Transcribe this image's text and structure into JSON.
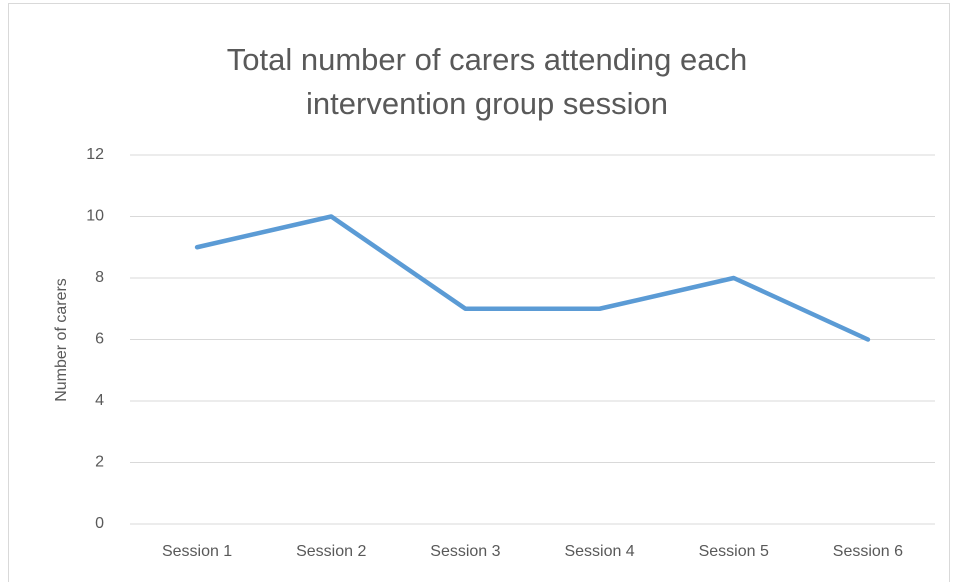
{
  "chart_data": {
    "type": "line",
    "title": "Total number of carers attending each intervention group session",
    "y_label": "Number of carers",
    "categories": [
      "Session 1",
      "Session 2",
      "Session 3",
      "Session 4",
      "Session 5",
      "Session 6"
    ],
    "series": [
      {
        "name": "Number of carers",
        "color": "#5b9bd5",
        "values": [
          9,
          10,
          7,
          7,
          8,
          6
        ]
      }
    ],
    "ylim": [
      0,
      12
    ],
    "yticks": [
      0,
      2,
      4,
      6,
      8,
      10,
      12
    ],
    "grid": true
  }
}
